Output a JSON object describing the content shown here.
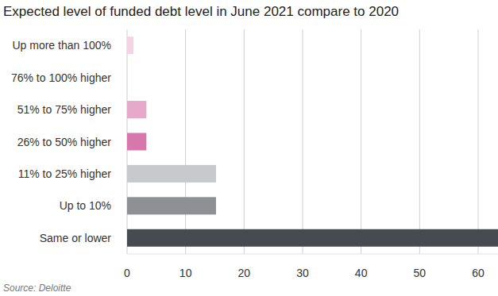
{
  "chart_data": {
    "type": "bar",
    "orientation": "horizontal",
    "title": "Expected level of funded debt level in June 2021 compare to 2020",
    "categories": [
      "Up more than 100%",
      "76% to 100% higher",
      "51% to 75% higher",
      "26% to 50% higher",
      "11% to 25% higher",
      "Up to 10%",
      "Same or lower"
    ],
    "values": [
      1.1,
      0,
      3.3,
      3.3,
      15.2,
      15.2,
      63.4
    ],
    "colors": [
      "#f4d3e4",
      "#ecbcd5",
      "#e6a9c9",
      "#d678ac",
      "#c8c9cc",
      "#8e9095",
      "#464a51"
    ],
    "xlim": [
      0,
      63.4
    ],
    "xticks": [
      0,
      10,
      20,
      30,
      40,
      50,
      60
    ],
    "grid": true,
    "source": "Source: Deloitte"
  }
}
